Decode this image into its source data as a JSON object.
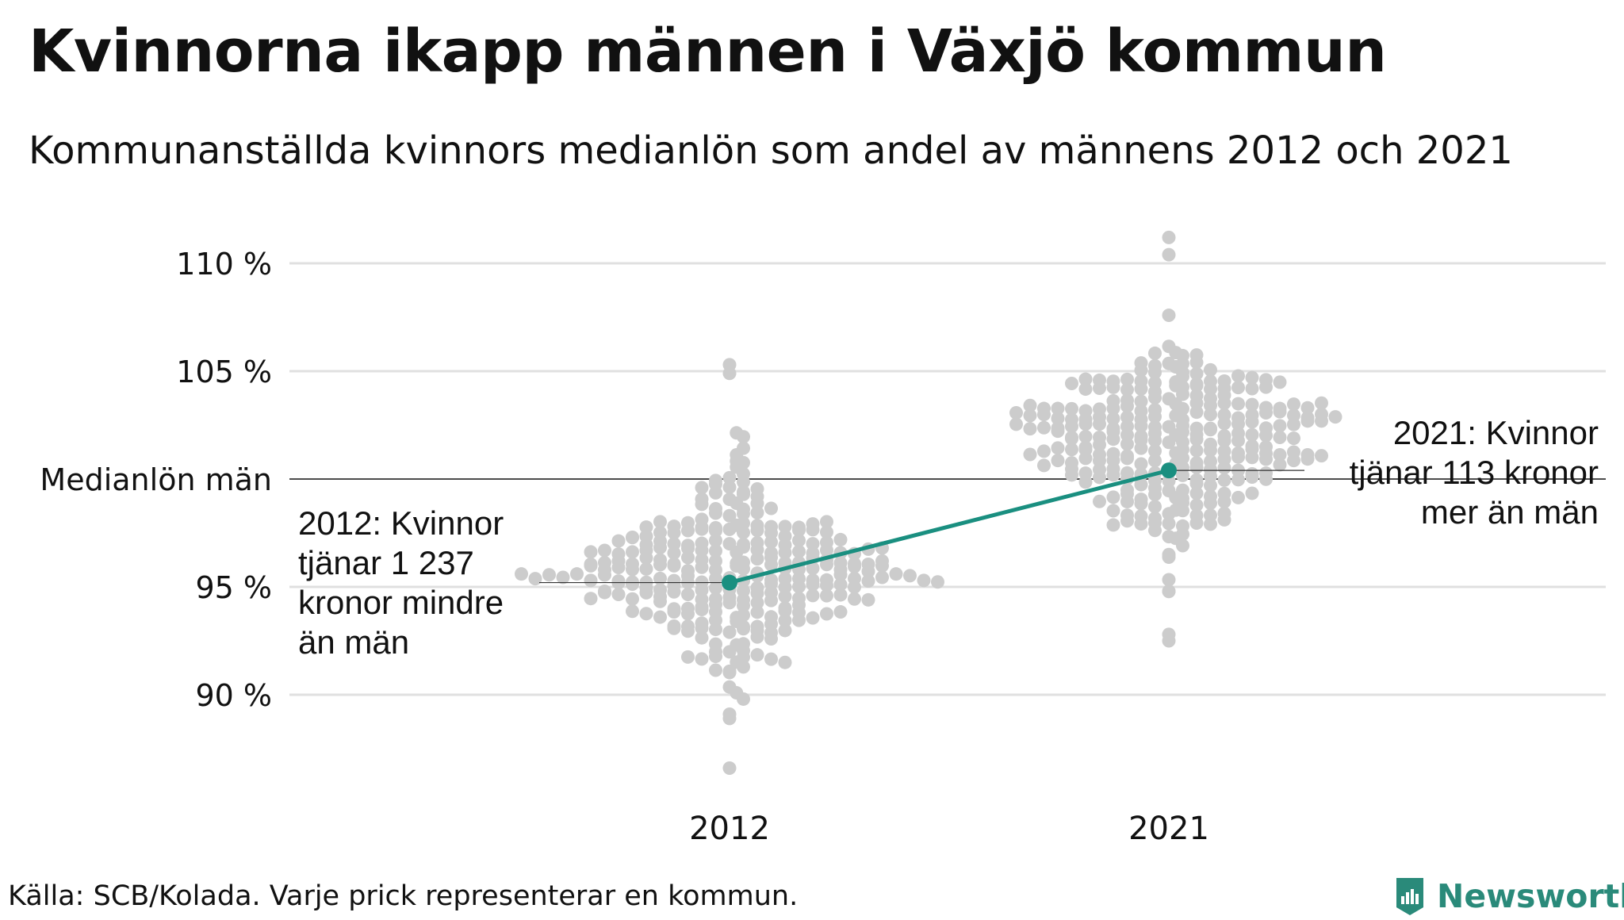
{
  "title": "Kvinnorna ikapp männen i Växjö kommun",
  "subtitle": "Kommunanställda kvinnors medianlön som andel av männens 2012 och 2021",
  "source": "Källa: SCB/Kolada. Varje prick representerar en kommun.",
  "brand": "Newsworthy",
  "colors": {
    "dots": "#cccccc",
    "highlight": "#1a8f80",
    "grid": "#e0e0e0",
    "reference": "#111111",
    "text": "#111111"
  },
  "icons": {
    "brand_logo": "newsworthy-logo-icon"
  },
  "chart_data": {
    "type": "scatter",
    "x": [
      "2012",
      "2021"
    ],
    "ylim": [
      86,
      112
    ],
    "yticks": [
      {
        "value": 110,
        "label": "110 %"
      },
      {
        "value": 105,
        "label": "105 %"
      },
      {
        "value": 100,
        "label": "Medianlön män"
      },
      {
        "value": 95,
        "label": "95 %"
      },
      {
        "value": 90,
        "label": "90 %"
      }
    ],
    "reference_line": 100,
    "series": [
      {
        "name": "Växjö kommun",
        "highlighted": true,
        "values": [
          95.2,
          100.4
        ]
      }
    ],
    "distributions": [
      {
        "x": "2012",
        "min": 86.6,
        "max": 105.3,
        "median": 95.9,
        "outliers": [
          86.6,
          88.9,
          89.1,
          104.9,
          105.3
        ]
      },
      {
        "x": "2021",
        "min": 92.5,
        "max": 111.2,
        "median": 101.6,
        "outliers": [
          110.4,
          111.2,
          92.5,
          92.8
        ]
      }
    ],
    "annotations": [
      {
        "x": "2012",
        "y": 95.2,
        "lines": [
          "2012: Kvinnor",
          "tjänar 1 237",
          "kronor mindre",
          "än män"
        ]
      },
      {
        "x": "2021",
        "y": 100.4,
        "lines": [
          "2021: Kvinnor",
          "tjänar 113 kronor",
          "mer än män"
        ]
      }
    ]
  }
}
